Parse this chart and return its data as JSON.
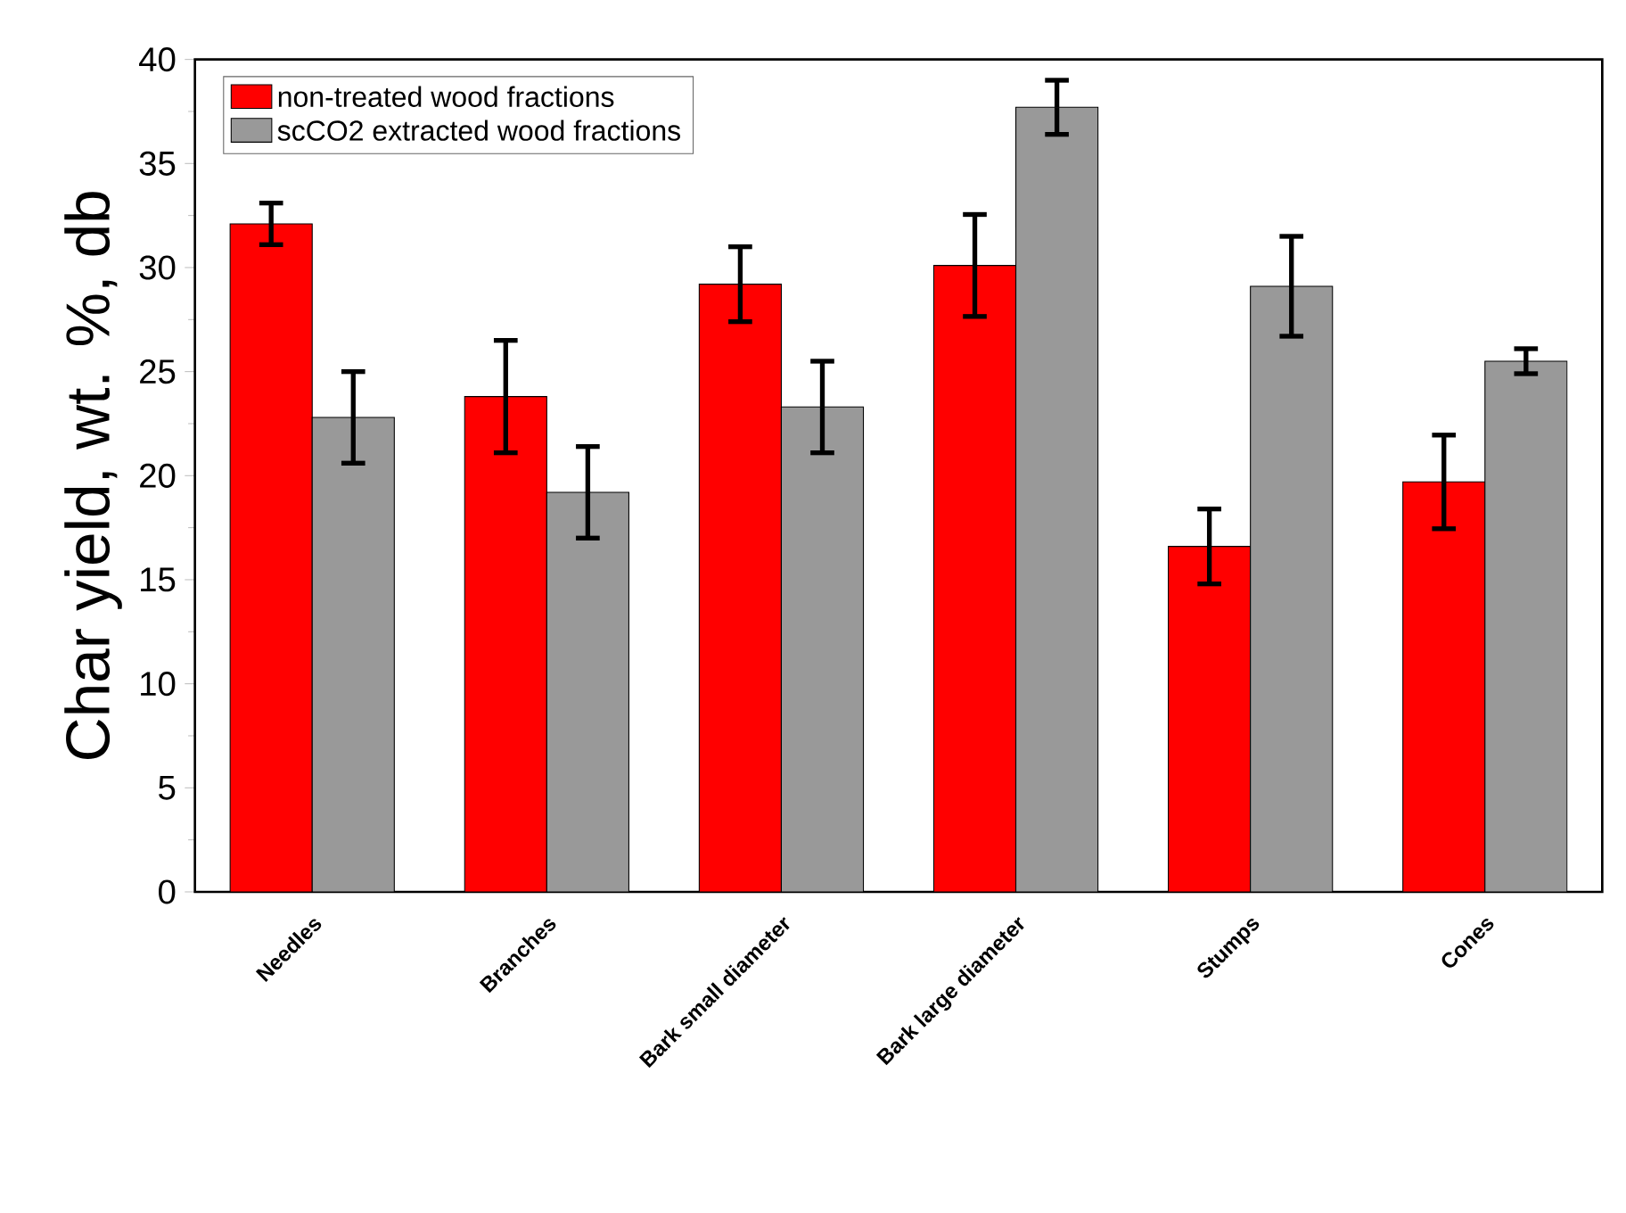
{
  "chart_data": {
    "type": "bar",
    "ylabel": "Char yield, wt. %, db",
    "categories": [
      "Needles",
      "Branches",
      "Bark small diameter",
      "Bark large diameter",
      "Stumps",
      "Cones"
    ],
    "series": [
      {
        "name": "non-treated wood fractions",
        "color": "#ff0000",
        "values": [
          32.1,
          23.8,
          29.2,
          30.1,
          16.6,
          19.7
        ],
        "errors": [
          1.0,
          2.7,
          1.8,
          2.45,
          1.8,
          2.25
        ]
      },
      {
        "name": "scCO2 extracted wood fractions",
        "color": "#999999",
        "values": [
          22.8,
          19.2,
          23.3,
          37.7,
          29.1,
          25.5
        ],
        "errors": [
          2.2,
          2.2,
          2.2,
          1.3,
          2.4,
          0.6
        ]
      }
    ],
    "ylim": [
      0,
      40
    ],
    "yticks": [
      0,
      5,
      10,
      15,
      20,
      25,
      30,
      35,
      40
    ],
    "legend": "top left"
  }
}
